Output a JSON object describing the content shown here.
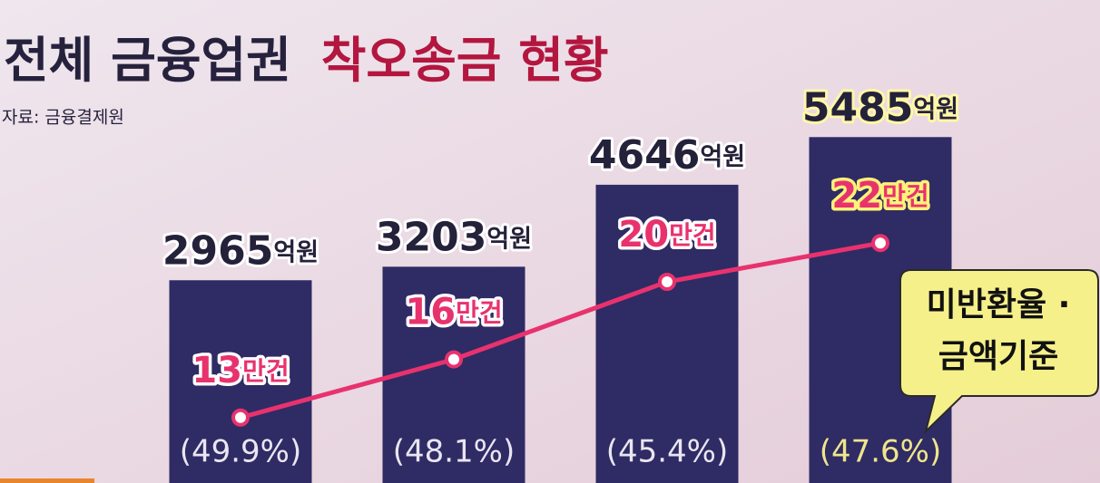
{
  "chart_data": {
    "type": "bar",
    "title": [
      "전체 금융업권",
      "착오송금 현황"
    ],
    "title_colors": [
      "#26223d",
      "#b3163f"
    ],
    "subtitle": "자료: 금융결제원",
    "categories": [
      null,
      null,
      null,
      null
    ],
    "ylim": [
      -700,
      6000
    ],
    "y2lim": [
      0,
      30
    ],
    "series": [
      {
        "type": "bar",
        "color": "#2f2b64",
        "values": [
          2965,
          3203,
          4646,
          5485
        ],
        "value_labels": [
          "2965억원",
          "3203억원",
          "4646억원",
          "5485억원"
        ],
        "label_colors": [
          "#24213a",
          "#24213a",
          "#24213a",
          "#24213a"
        ],
        "halo_colors": [
          "#ffffff",
          "#ffffff",
          "#ffffff",
          "#fff7a8"
        ]
      },
      {
        "type": "line",
        "axis": "y2",
        "color": "#e8326e",
        "values": [
          13,
          16,
          20,
          22
        ],
        "value_labels": [
          "13만건",
          "16만건",
          "20만건",
          "22만건"
        ],
        "label_colors": [
          "#e8326e",
          "#e8326e",
          "#e8326e",
          "#e8326e"
        ],
        "halo_colors": [
          "#ffffff",
          "#ffffff",
          "#ffffff",
          "#fff27a"
        ]
      },
      {
        "type": "label",
        "values": [
          49.9,
          48.1,
          45.4,
          47.6
        ],
        "value_labels": [
          "(49.9%)",
          "(48.1%)",
          "(45.4%)",
          "(47.6%)"
        ],
        "label_colors": [
          "#e9e6f2",
          "#e9e6f2",
          "#e9e6f2",
          "#efe58c"
        ]
      }
    ],
    "annotation": [
      "미반환율 ·",
      "금액기준"
    ]
  }
}
